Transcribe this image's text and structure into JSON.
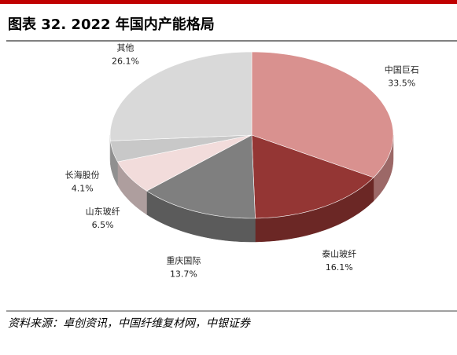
{
  "chart_data": {
    "type": "pie",
    "title": "图表 32. 2022 年国内产能格局",
    "source": "资料来源：卓创资讯，中国纤维复材网，中银证券",
    "categories": [
      "中国巨石",
      "泰山玻纤",
      "重庆国际",
      "山东玻纤",
      "长海股份",
      "其他"
    ],
    "values": [
      33.5,
      16.1,
      13.7,
      6.5,
      4.1,
      26.1
    ],
    "value_labels": [
      "33.5%",
      "16.1%",
      "13.7%",
      "6.5%",
      "4.1%",
      "26.1%"
    ],
    "colors": [
      "#d9918f",
      "#943634",
      "#7f7f7f",
      "#f2dcdb",
      "#c8c8c8",
      "#d9d9d9"
    ]
  }
}
